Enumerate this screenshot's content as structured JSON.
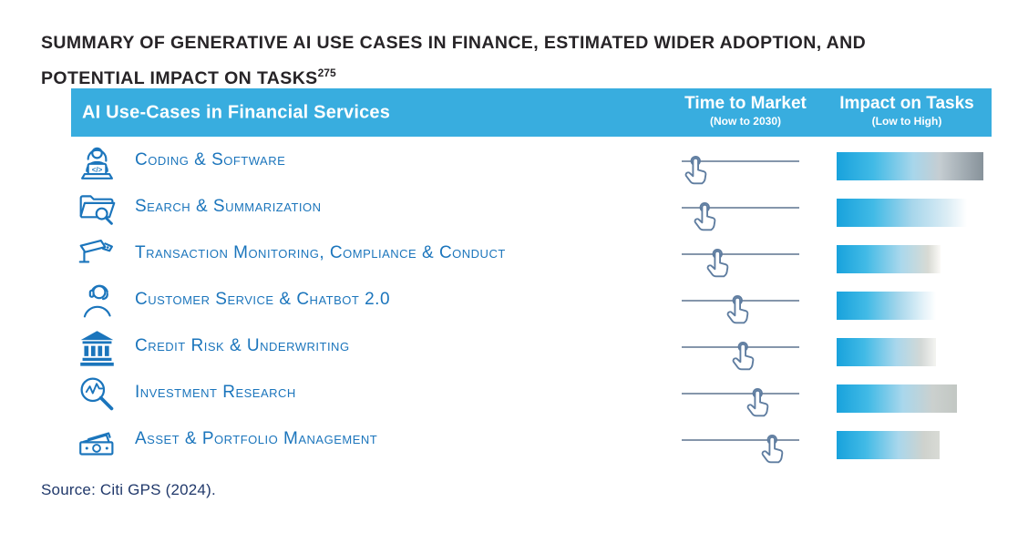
{
  "title": {
    "line1": "SUMMARY OF GENERATIVE AI USE CASES IN FINANCE, ESTIMATED WIDER ADOPTION, AND",
    "line2": "POTENTIAL IMPACT ON TASKS",
    "footnote": "275"
  },
  "header": {
    "col1": "AI Use-Cases in Financial Services",
    "col2": "Time to Market",
    "col2_sub": "(Now to 2030)",
    "col3": "Impact on Tasks",
    "col3_sub": "(Low to High)"
  },
  "source": "Source: Citi GPS (2024).",
  "colors": {
    "header_bg": "#38ADDF",
    "accent_blue": "#1B75BC",
    "slider_line": "#8596AB",
    "hand_icon": "#5F7DA0",
    "title_text": "#272427",
    "source_text": "#21396B",
    "bar_start_cyan": "#18A2DC",
    "bar_end_dark_gray": "#87929A"
  },
  "chart_data": {
    "type": "table",
    "title": "Summary of Generative AI Use Cases in Finance, Estimated Wider Adoption, and Potential Impact on Tasks",
    "footnote_marker": "275",
    "columns": [
      "AI Use-Cases in Financial Services",
      "Time to Market (Now to 2030)",
      "Impact on Tasks (Low to High)"
    ],
    "time_axis": {
      "label": "Time to Market",
      "range": "Now to 2030",
      "scale_note": "0 = Now, 100 = 2030 (position of tap-hand marker on slider line)"
    },
    "impact_axis": {
      "label": "Impact on Tasks",
      "range": "Low to High",
      "scale_note": "bar length percent of longest bar; darker end = higher impact"
    },
    "rows": [
      {
        "use_case": "Coding & Software",
        "icon": "coder-laptop-icon",
        "time_to_market_pct": 12,
        "impact_length_pct": 100,
        "bar_gradient": [
          "#18A2DC 0%",
          "#41BAE6 25%",
          "#A7D6EB 52%",
          "#C5CDD2 70%",
          "#87929A 100%"
        ]
      },
      {
        "use_case": "Search & Summarization",
        "icon": "folder-search-icon",
        "time_to_market_pct": 19,
        "impact_length_pct": 89,
        "bar_gradient": [
          "#18A2DC 0%",
          "#41BAE6 28%",
          "#A7D6EB 58%",
          "#DCEDF5 85%",
          "#FFFFFF 100%"
        ]
      },
      {
        "use_case": "Transaction Monitoring, Compliance & Conduct",
        "icon": "cctv-camera-icon",
        "time_to_market_pct": 30,
        "impact_length_pct": 71,
        "bar_gradient": [
          "#18A2DC 0%",
          "#41BAE6 28%",
          "#AAD8EC 62%",
          "#D8DAD4 88%",
          "#FBFAF7 100%"
        ]
      },
      {
        "use_case": "Customer Service & Chatbot 2.0",
        "icon": "headset-agent-icon",
        "time_to_market_pct": 47,
        "impact_length_pct": 68,
        "bar_gradient": [
          "#18A2DC 0%",
          "#41BAE6 30%",
          "#A5D6EB 62%",
          "#E6F3F9 88%",
          "#FFFFFF 100%"
        ]
      },
      {
        "use_case": "Credit Risk & Underwriting",
        "icon": "bank-icon",
        "time_to_market_pct": 52,
        "impact_length_pct": 68,
        "bar_gradient": [
          "#18A2DC 0%",
          "#41BAE6 28%",
          "#A9D7EC 60%",
          "#D3D8D6 85%",
          "#F4F4F1 100%"
        ]
      },
      {
        "use_case": "Investment Research",
        "icon": "magnifier-chart-icon",
        "time_to_market_pct": 64,
        "impact_length_pct": 82,
        "bar_gradient": [
          "#18A2DC 0%",
          "#41BAE6 26%",
          "#A9D7EC 55%",
          "#CBD0CE 80%",
          "#C2C7C3 100%"
        ]
      },
      {
        "use_case": "Asset & Portfolio Management",
        "icon": "banknotes-icon",
        "time_to_market_pct": 77,
        "impact_length_pct": 70,
        "bar_gradient": [
          "#18A2DC 0%",
          "#41BAE6 28%",
          "#A9D7EC 60%",
          "#CFD2CD 85%",
          "#D8DAD5 100%"
        ]
      }
    ]
  }
}
